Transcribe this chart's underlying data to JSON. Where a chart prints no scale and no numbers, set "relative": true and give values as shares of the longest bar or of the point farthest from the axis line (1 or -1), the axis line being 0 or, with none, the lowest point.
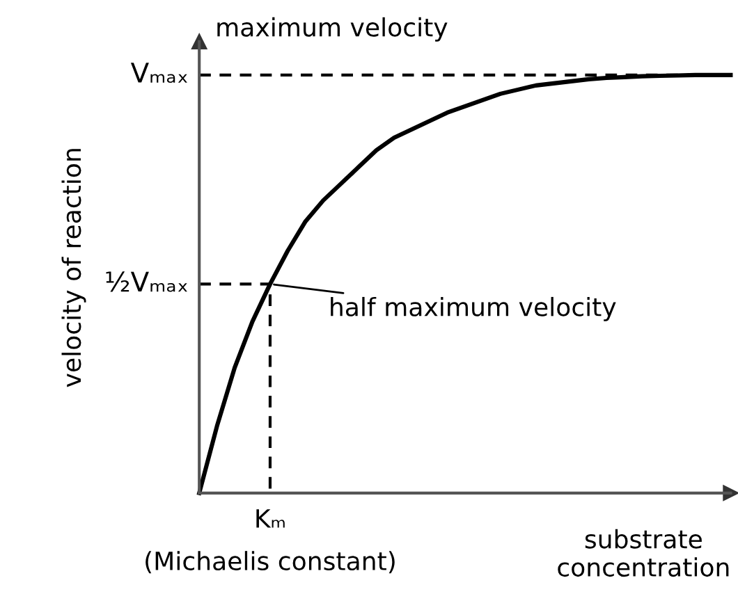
{
  "chart_data": {
    "type": "line",
    "ylabel": "velocity of reaction",
    "xlabel": "substrate\nconcentration",
    "categories": [
      null,
      null,
      null,
      null,
      null,
      null,
      null,
      null,
      null,
      null,
      null,
      null,
      null,
      null,
      null,
      null,
      null,
      null,
      null,
      null,
      null,
      null,
      null,
      null,
      null,
      null,
      null,
      null,
      null,
      null,
      null
    ],
    "relative": true,
    "legend": false,
    "marker": "none",
    "ref_lines": [
      {
        "axis": "y",
        "value": 1,
        "label": "Vₘₐₓ",
        "color": "#000000",
        "line_style": "dashed"
      },
      {
        "axis": "y",
        "value": 0.5,
        "label": "½Vₘₐₓ",
        "color": "#000000",
        "line_style": "dashed"
      }
    ],
    "annotations": [
      "half maximum velocity",
      "maximum velocity",
      "Kₘ",
      "(Michaelis constant)"
    ],
    "series": [
      {
        "color": "#000000",
        "line_style": "solid",
        "values": [
          0,
          0.16,
          0.3,
          0.41,
          0.5,
          0.58,
          0.65,
          0.7,
          0.74,
          0.78,
          0.82,
          0.85,
          0.87,
          0.89,
          0.91,
          0.925,
          0.94,
          0.955,
          0.965,
          0.975,
          0.98,
          0.985,
          0.99,
          0.993,
          0.995,
          0.997,
          0.998,
          0.999,
          1.0,
          1.0,
          1.0
        ]
      }
    ]
  }
}
